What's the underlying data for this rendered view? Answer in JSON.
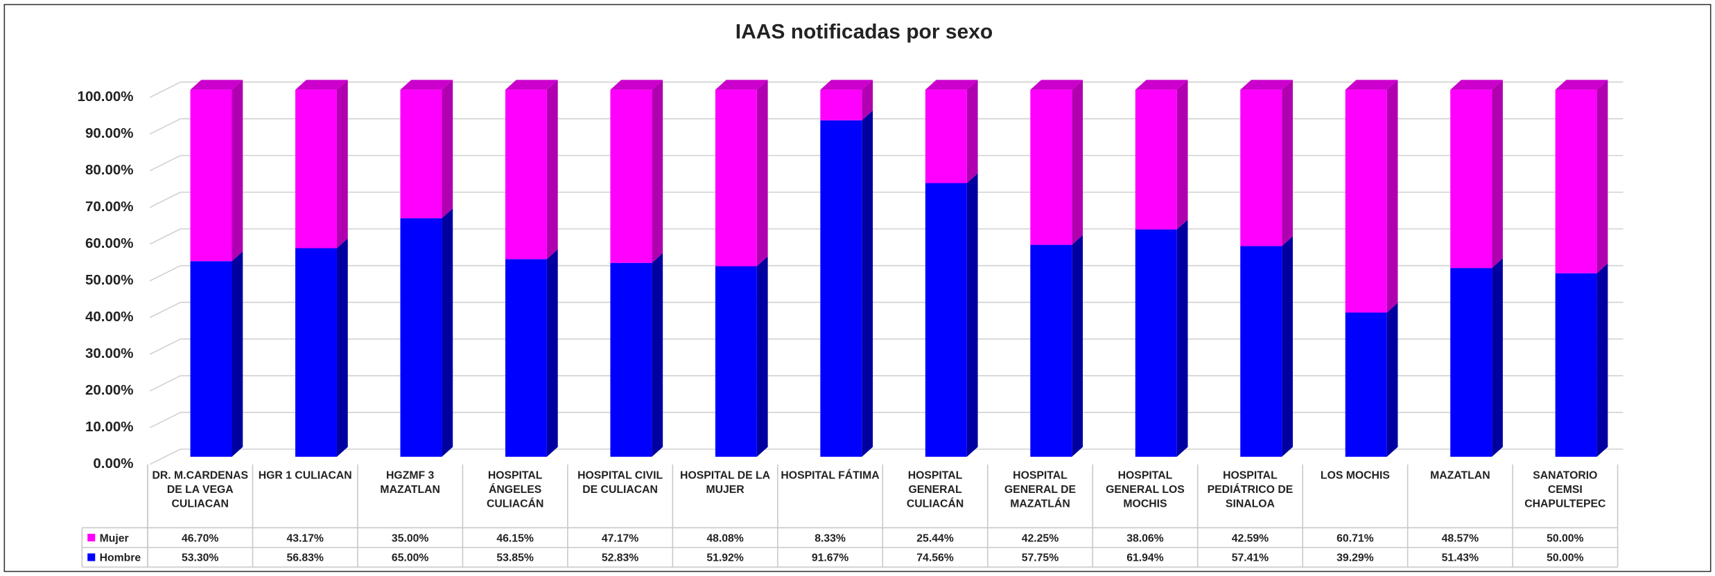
{
  "chart_data": {
    "type": "stacked_bar_3d",
    "title": "IAAS notificadas por sexo",
    "categories": [
      "DR. M.CARDENAS DE LA VEGA CULIACAN",
      "HGR 1 CULIACAN",
      "HGZMF 3 MAZATLAN",
      "HOSPITAL ÁNGELES CULIACÁN",
      "HOSPITAL CIVIL DE CULIACAN",
      "HOSPITAL DE LA MUJER",
      "HOSPITAL FÁTIMA",
      "HOSPITAL GENERAL CULIACÁN",
      "HOSPITAL GENERAL DE MAZATLÁN",
      "HOSPITAL GENERAL LOS MOCHIS",
      "HOSPITAL PEDIÁTRICO DE SINALOA",
      "LOS MOCHIS",
      "MAZATLAN",
      "SANATORIO CEMSI CHAPULTEPEC"
    ],
    "series": [
      {
        "name": "Mujer",
        "color": "#ff00ff",
        "side": "#b000b0",
        "top": "#cc00cc",
        "values": [
          46.7,
          43.17,
          35.0,
          46.15,
          47.17,
          48.08,
          8.33,
          25.44,
          42.25,
          38.06,
          42.59,
          60.71,
          48.57,
          50.0
        ],
        "value_labels": [
          "46.70%",
          "43.17%",
          "35.00%",
          "46.15%",
          "47.17%",
          "48.08%",
          "8.33%",
          "25.44%",
          "42.25%",
          "38.06%",
          "42.59%",
          "60.71%",
          "48.57%",
          "50.00%"
        ]
      },
      {
        "name": "Hombre",
        "color": "#0000ff",
        "side": "#0000a0",
        "top": "#0000c8",
        "values": [
          53.3,
          56.83,
          65.0,
          53.85,
          52.83,
          51.92,
          91.67,
          74.56,
          57.75,
          61.94,
          57.41,
          39.29,
          51.43,
          50.0
        ],
        "value_labels": [
          "53.30%",
          "56.83%",
          "65.00%",
          "53.85%",
          "52.83%",
          "51.92%",
          "91.67%",
          "74.56%",
          "57.75%",
          "61.94%",
          "57.41%",
          "39.29%",
          "51.43%",
          "50.00%"
        ]
      }
    ],
    "ylim": [
      0,
      100
    ],
    "yticks": [
      {
        "value": 0,
        "label": "0.00%"
      },
      {
        "value": 10,
        "label": "10.00%"
      },
      {
        "value": 20,
        "label": "20.00%"
      },
      {
        "value": 30,
        "label": "30.00%"
      },
      {
        "value": 40,
        "label": "40.00%"
      },
      {
        "value": 50,
        "label": "50.00%"
      },
      {
        "value": 60,
        "label": "60.00%"
      },
      {
        "value": 70,
        "label": "70.00%"
      },
      {
        "value": 80,
        "label": "80.00%"
      },
      {
        "value": 90,
        "label": "90.00%"
      },
      {
        "value": 100,
        "label": "100.00%"
      }
    ],
    "grid": true
  }
}
